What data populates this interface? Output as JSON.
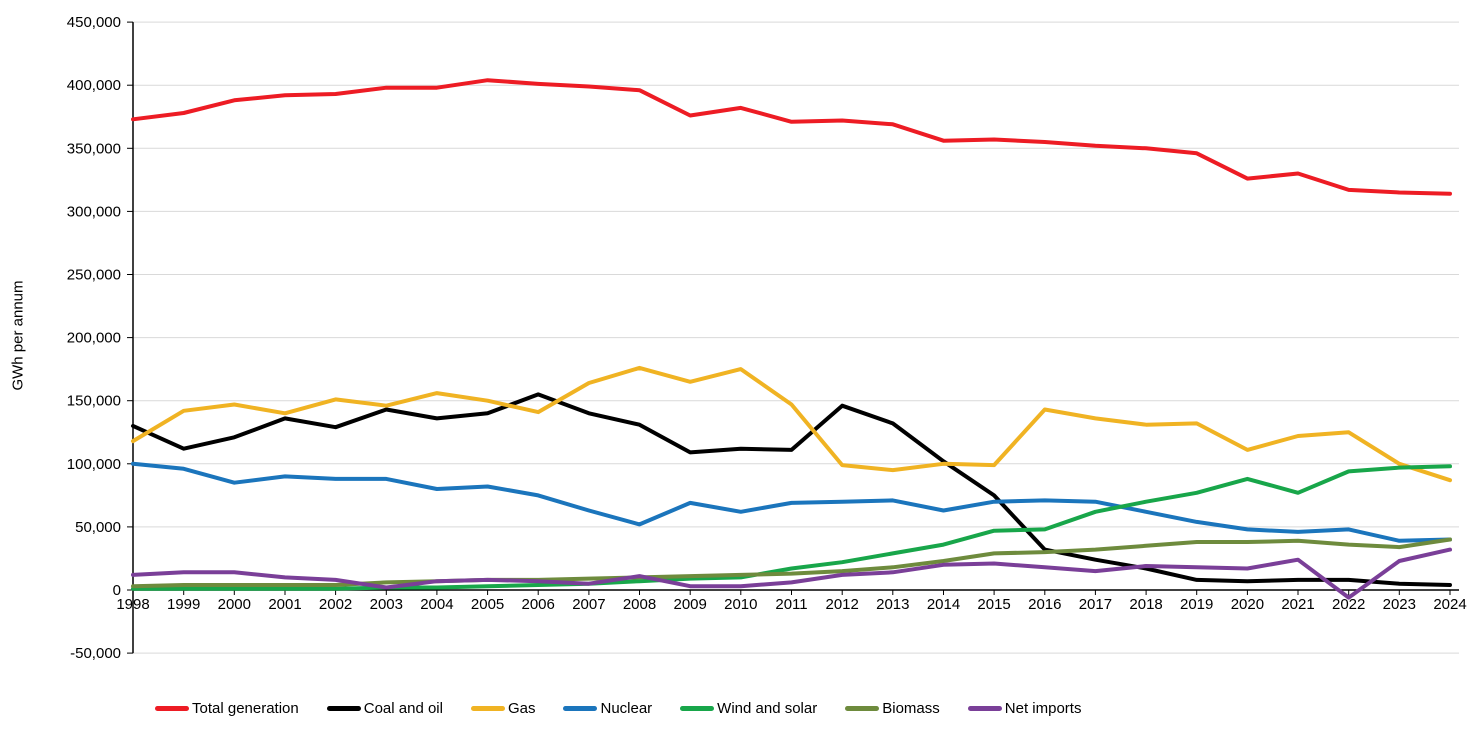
{
  "chart_data": {
    "type": "line",
    "title": "",
    "ylabel": "GWh per annum",
    "xlabel": "",
    "grid": true,
    "legend_position": "bottom",
    "ylim": [
      -50000,
      450000
    ],
    "y_ticks": [
      450000,
      400000,
      350000,
      300000,
      250000,
      200000,
      150000,
      100000,
      50000,
      0,
      -50000
    ],
    "y_tick_labels": [
      "450,000",
      "400,000",
      "350,000",
      "300,000",
      "250,000",
      "200,000",
      "150,000",
      "100,000",
      "50,000",
      "0",
      "-50,000"
    ],
    "x": [
      1998,
      1999,
      2000,
      2001,
      2002,
      2003,
      2004,
      2005,
      2006,
      2007,
      2008,
      2009,
      2010,
      2011,
      2012,
      2013,
      2014,
      2015,
      2016,
      2017,
      2018,
      2019,
      2020,
      2021,
      2022,
      2023,
      2024
    ],
    "x_tick_labels": [
      "1998",
      "1999",
      "2000",
      "2001",
      "2002",
      "2003",
      "2004",
      "2005",
      "2006",
      "2007",
      "2008",
      "2009",
      "2010",
      "2011",
      "2012",
      "2013",
      "2014",
      "2015",
      "2016",
      "2017",
      "2018",
      "2019",
      "2020",
      "2021",
      "2022",
      "2023",
      "2024"
    ],
    "series": [
      {
        "name": "Total generation",
        "color": "#ed1c24",
        "values": [
          373000,
          378000,
          388000,
          392000,
          393000,
          398000,
          398000,
          404000,
          401000,
          399000,
          396000,
          376000,
          382000,
          371000,
          372000,
          369000,
          356000,
          357000,
          355000,
          352000,
          350000,
          346000,
          326000,
          330000,
          317000,
          315000,
          314000
        ]
      },
      {
        "name": "Coal and oil",
        "color": "#000000",
        "values": [
          130000,
          112000,
          121000,
          136000,
          129000,
          143000,
          136000,
          140000,
          155000,
          140000,
          131000,
          109000,
          112000,
          111000,
          146000,
          132000,
          102000,
          75000,
          32000,
          24000,
          17000,
          8000,
          7000,
          8000,
          8000,
          5000,
          4000
        ]
      },
      {
        "name": "Gas",
        "color": "#f0b323",
        "values": [
          118000,
          142000,
          147000,
          140000,
          151000,
          146000,
          156000,
          150000,
          141000,
          164000,
          176000,
          165000,
          175000,
          147000,
          99000,
          95000,
          100000,
          99000,
          143000,
          136000,
          131000,
          132000,
          111000,
          122000,
          125000,
          100000,
          87000
        ]
      },
      {
        "name": "Nuclear",
        "color": "#1b75bc",
        "values": [
          100000,
          96000,
          85000,
          90000,
          88000,
          88000,
          80000,
          82000,
          75000,
          63000,
          52000,
          69000,
          62000,
          69000,
          70000,
          71000,
          63000,
          70000,
          71000,
          70000,
          62000,
          54000,
          48000,
          46000,
          48000,
          39000,
          40000
        ]
      },
      {
        "name": "Wind and solar",
        "color": "#18a64a",
        "values": [
          1000,
          1000,
          1000,
          1000,
          1000,
          2000,
          2000,
          3000,
          4000,
          5000,
          7000,
          9000,
          10000,
          17000,
          22000,
          29000,
          36000,
          47000,
          48000,
          62000,
          70000,
          77000,
          88000,
          77000,
          94000,
          97000,
          98000
        ]
      },
      {
        "name": "Biomass",
        "color": "#6e8b3d",
        "values": [
          3000,
          4000,
          4000,
          4000,
          4000,
          6000,
          7000,
          8000,
          8000,
          9000,
          10000,
          11000,
          12000,
          13000,
          15000,
          18000,
          23000,
          29000,
          30000,
          32000,
          35000,
          38000,
          38000,
          39000,
          36000,
          34000,
          40000
        ]
      },
      {
        "name": "Net imports",
        "color": "#7a3f98",
        "values": [
          12000,
          14000,
          14000,
          10000,
          8000,
          2000,
          7000,
          8000,
          7000,
          5000,
          11000,
          3000,
          3000,
          6000,
          12000,
          14000,
          20000,
          21000,
          18000,
          15000,
          19000,
          18000,
          17000,
          24000,
          -6000,
          23000,
          32000
        ]
      }
    ]
  }
}
